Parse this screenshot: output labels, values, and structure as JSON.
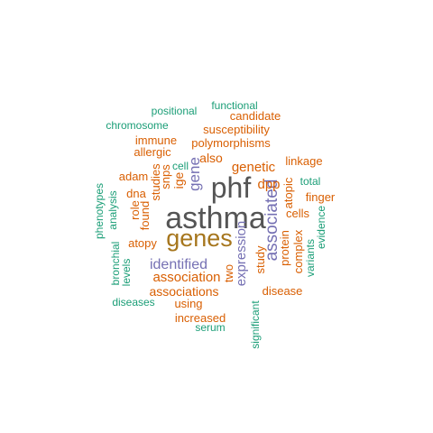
{
  "colors": {
    "teal": "#1b9e77",
    "orange": "#d95f02",
    "purple": "#7570b3",
    "gold": "#a6761d",
    "gray": "#555555"
  },
  "words": [
    {
      "text": "asthma",
      "color": "gray"
    },
    {
      "text": "phf",
      "color": "gray"
    },
    {
      "text": "genes",
      "color": "gold"
    },
    {
      "text": "associated",
      "color": "purple"
    },
    {
      "text": "gene",
      "color": "purple"
    },
    {
      "text": "identified",
      "color": "purple"
    },
    {
      "text": "expression",
      "color": "purple"
    },
    {
      "text": "genetic",
      "color": "orange"
    },
    {
      "text": "association",
      "color": "orange"
    },
    {
      "text": "associations",
      "color": "orange"
    },
    {
      "text": "polymorphisms",
      "color": "orange"
    },
    {
      "text": "susceptibility",
      "color": "orange"
    },
    {
      "text": "candidate",
      "color": "orange"
    },
    {
      "text": "linkage",
      "color": "orange"
    },
    {
      "text": "immune",
      "color": "orange"
    },
    {
      "text": "allergic",
      "color": "orange"
    },
    {
      "text": "also",
      "color": "orange"
    },
    {
      "text": "adam",
      "color": "orange"
    },
    {
      "text": "dpp",
      "color": "orange"
    },
    {
      "text": "atopic",
      "color": "orange"
    },
    {
      "text": "finger",
      "color": "orange"
    },
    {
      "text": "cells",
      "color": "orange"
    },
    {
      "text": "protein",
      "color": "orange"
    },
    {
      "text": "complex",
      "color": "orange"
    },
    {
      "text": "study",
      "color": "orange"
    },
    {
      "text": "disease",
      "color": "orange"
    },
    {
      "text": "two",
      "color": "orange"
    },
    {
      "text": "using",
      "color": "orange"
    },
    {
      "text": "increased",
      "color": "orange"
    },
    {
      "text": "atopy",
      "color": "orange"
    },
    {
      "text": "role",
      "color": "orange"
    },
    {
      "text": "found",
      "color": "orange"
    },
    {
      "text": "studies",
      "color": "orange"
    },
    {
      "text": "snps",
      "color": "orange"
    },
    {
      "text": "ige",
      "color": "orange"
    },
    {
      "text": "dna",
      "color": "orange"
    },
    {
      "text": "positional",
      "color": "teal"
    },
    {
      "text": "functional",
      "color": "teal"
    },
    {
      "text": "chromosome",
      "color": "teal"
    },
    {
      "text": "cell",
      "color": "teal"
    },
    {
      "text": "total",
      "color": "teal"
    },
    {
      "text": "evidence",
      "color": "teal"
    },
    {
      "text": "variants",
      "color": "teal"
    },
    {
      "text": "significant",
      "color": "teal"
    },
    {
      "text": "serum",
      "color": "teal"
    },
    {
      "text": "diseases",
      "color": "teal"
    },
    {
      "text": "levels",
      "color": "teal"
    },
    {
      "text": "bronchial",
      "color": "teal"
    },
    {
      "text": "analysis",
      "color": "teal"
    },
    {
      "text": "phenotypes",
      "color": "teal"
    }
  ]
}
